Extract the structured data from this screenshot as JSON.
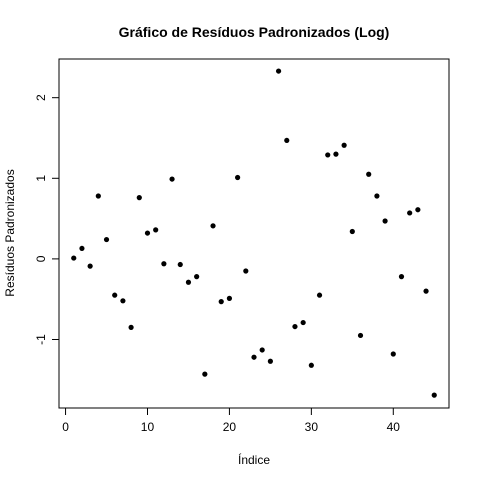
{
  "chart_data": {
    "type": "scatter",
    "title": "Gráfico de Resíduos Padronizados (Log)",
    "xlabel": "Índice",
    "ylabel": "Resíduos Padronizados",
    "xlim": [
      0,
      45
    ],
    "ylim": [
      -1.85,
      2.48
    ],
    "xticks": [
      0,
      10,
      20,
      30,
      40
    ],
    "yticks": [
      -1,
      0,
      1,
      2
    ],
    "x": [
      1,
      2,
      3,
      4,
      5,
      6,
      7,
      8,
      9,
      10,
      11,
      12,
      13,
      14,
      15,
      16,
      17,
      18,
      19,
      20,
      21,
      22,
      23,
      24,
      25,
      26,
      27,
      28,
      29,
      30,
      31,
      32,
      33,
      34,
      35,
      36,
      37,
      38,
      39,
      40,
      41,
      42,
      43,
      44,
      45
    ],
    "y": [
      0.01,
      0.13,
      -0.09,
      0.78,
      0.24,
      -0.45,
      -0.52,
      -0.85,
      0.76,
      0.32,
      0.36,
      -0.06,
      0.99,
      -0.07,
      -0.29,
      -0.22,
      -1.43,
      0.41,
      -0.53,
      -0.49,
      1.01,
      -0.15,
      -1.22,
      -1.13,
      -1.27,
      2.33,
      1.47,
      -0.84,
      -0.79,
      -1.32,
      -0.45,
      1.29,
      1.3,
      1.41,
      0.34,
      -0.95,
      1.05,
      0.78,
      0.47,
      -1.18,
      -0.22,
      0.57,
      0.61,
      -0.4,
      -1.69
    ],
    "grid": false,
    "legend": "none"
  }
}
